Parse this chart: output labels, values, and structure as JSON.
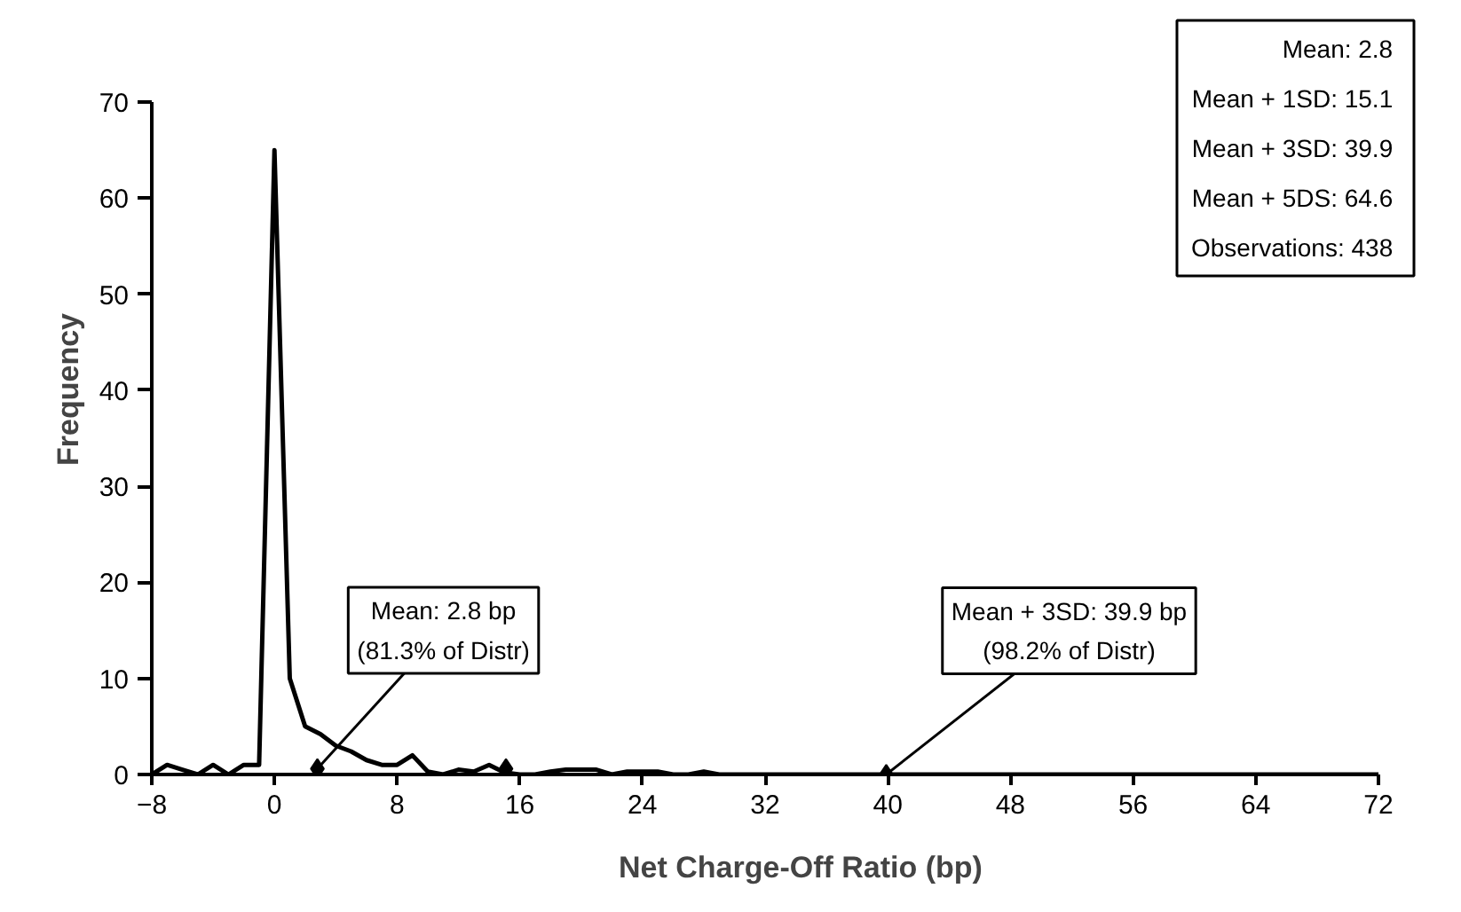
{
  "chart_data": {
    "type": "line",
    "xlabel": "Net Charge-Off Ratio (bp)",
    "ylabel": "Frequency",
    "xlim": [
      -8,
      72
    ],
    "ylim": [
      0,
      70
    ],
    "xticks": [
      -8,
      0,
      8,
      16,
      24,
      32,
      40,
      48,
      56,
      64,
      72
    ],
    "yticks": [
      0,
      10,
      20,
      30,
      40,
      50,
      60,
      70
    ],
    "grid": false,
    "series": [
      {
        "color": "#000000",
        "marker": "none",
        "x": [
          -8,
          -7,
          -6,
          -5,
          -4,
          -3,
          -2,
          -1,
          0,
          1,
          2,
          3,
          4,
          5,
          6,
          7,
          8,
          9,
          10,
          11,
          12,
          13,
          14,
          15,
          16,
          17,
          18,
          19,
          20,
          21,
          22,
          23,
          24,
          25,
          26,
          27,
          28,
          29,
          30,
          32,
          36,
          40,
          48,
          56,
          64,
          72
        ],
        "values": [
          0,
          1,
          0.5,
          0,
          1,
          0,
          1,
          1,
          65,
          10,
          5,
          4.2,
          3,
          2.4,
          1.5,
          1,
          1,
          2,
          0.3,
          0,
          0.5,
          0.3,
          1,
          0.2,
          0,
          0,
          0.3,
          0.5,
          0.5,
          0.5,
          0,
          0.3,
          0.3,
          0.3,
          0,
          0,
          0.3,
          0,
          0,
          0,
          0,
          0,
          0,
          0,
          0,
          0
        ]
      },
      {
        "type": "scatter",
        "color": "#000000",
        "marker": "diamond",
        "x": [
          2.8,
          15.1,
          39.9
        ],
        "values": [
          0.6,
          0.6,
          0
        ]
      }
    ],
    "annotations": [
      {
        "text": "Mean: 2.8 bp\n(81.3% of Distr)",
        "x": 2.8,
        "y": 0.6
      },
      {
        "text": "Mean + 3SD: 39.9 bp\n(98.2% of Distr)",
        "x": 39.9,
        "y": 0
      },
      "Mean:  2.8\nMean + 1SD:  15.1\nMean + 3SD:  39.9\nMean + 5DS:  64.6\nObservations:  438"
    ]
  }
}
